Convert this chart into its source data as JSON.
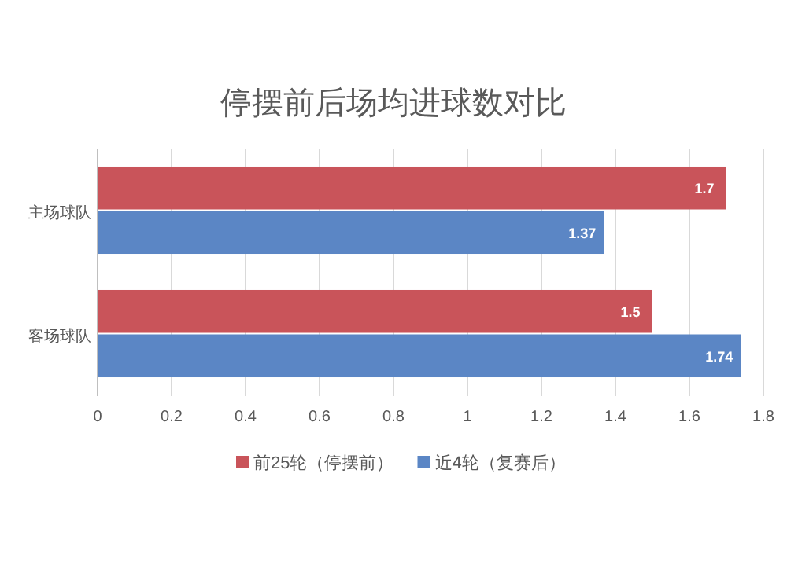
{
  "chart_data": {
    "type": "bar",
    "orientation": "horizontal",
    "title": "停摆前后场均进球数对比",
    "categories": [
      "主场球队",
      "客场球队"
    ],
    "series": [
      {
        "name": "前25轮（停摆前）",
        "color": "#c9545a",
        "values": [
          1.7,
          1.5
        ]
      },
      {
        "name": "近4轮（复赛后）",
        "color": "#5b86c5",
        "values": [
          1.37,
          1.74
        ]
      }
    ],
    "xlim": [
      0,
      1.8
    ],
    "xticks": [
      0,
      0.2,
      0.4,
      0.6,
      0.8,
      1,
      1.2,
      1.4,
      1.6,
      1.8
    ],
    "grid": "x",
    "legend": "bottom",
    "data_labels": true
  }
}
